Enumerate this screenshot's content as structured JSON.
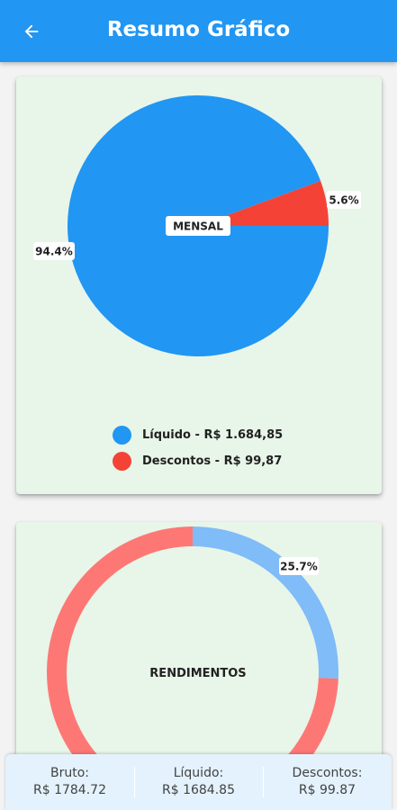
{
  "appbar": {
    "title": "Resumo Gráfico",
    "back_icon": "arrow-back-icon"
  },
  "colors": {
    "primary": "#2196f3",
    "liquido": "#2196f3",
    "descontos": "#f44336",
    "rend_light": "#7fbcf8",
    "rend_red": "#fd7875",
    "card_bg": "#e8f5e9"
  },
  "chart_data": [
    {
      "type": "pie",
      "center_label": "MENSAL",
      "slices": [
        {
          "name": "Líquido",
          "value": 94.4,
          "label": "94.4%"
        },
        {
          "name": "Descontos",
          "value": 5.6,
          "label": "5.6%"
        }
      ]
    },
    {
      "type": "pie",
      "center_label": "RENDIMENTOS",
      "slices": [
        {
          "name": "",
          "value": 25.7,
          "label": "25.7%"
        },
        {
          "name": "",
          "value": 74.3,
          "label": ""
        }
      ]
    }
  ],
  "legend": [
    {
      "label": "Líquido - R$ 1.684,85"
    },
    {
      "label": "Descontos - R$ 99,87"
    }
  ],
  "bottom": [
    {
      "label": "Bruto:",
      "value": "R$ 1784.72"
    },
    {
      "label": "Líquido:",
      "value": "R$ 1684.85"
    },
    {
      "label": "Descontos:",
      "value": "R$ 99.87"
    }
  ]
}
